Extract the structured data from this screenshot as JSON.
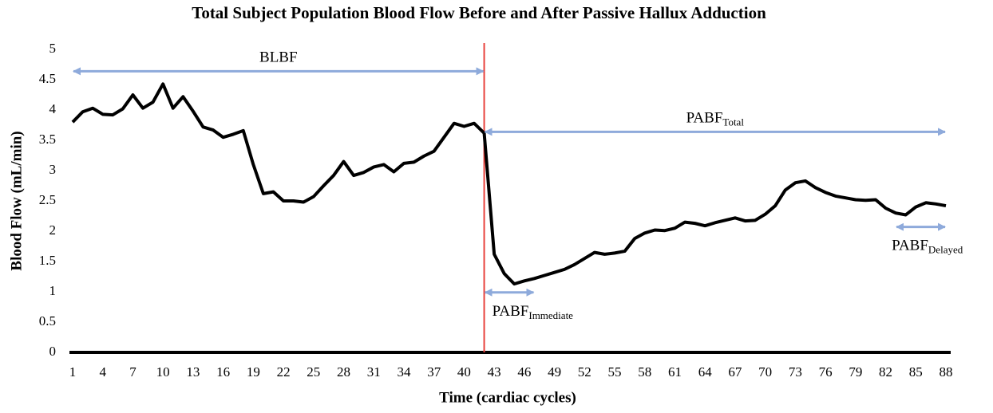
{
  "chart_data": {
    "type": "line",
    "title": "Total Subject Population Blood Flow Before and After Passive Hallux Adduction",
    "x_label": "Time (cardiac cycles)",
    "y_label": "Blood Flow (mL/min)",
    "x": [
      1,
      2,
      3,
      4,
      5,
      6,
      7,
      8,
      9,
      10,
      11,
      12,
      13,
      14,
      15,
      16,
      17,
      18,
      19,
      20,
      21,
      22,
      23,
      24,
      25,
      26,
      27,
      28,
      29,
      30,
      31,
      32,
      33,
      34,
      35,
      36,
      37,
      38,
      39,
      40,
      41,
      42,
      43,
      44,
      45,
      46,
      47,
      48,
      49,
      50,
      51,
      52,
      53,
      54,
      55,
      56,
      57,
      58,
      59,
      60,
      61,
      62,
      63,
      64,
      65,
      66,
      67,
      68,
      69,
      70,
      71,
      72,
      73,
      74,
      75,
      76,
      77,
      78,
      79,
      80,
      81,
      82,
      83,
      84,
      85,
      86,
      87,
      88
    ],
    "series": [
      {
        "name": "Blood Flow",
        "color": "#000000",
        "values": [
          3.8,
          3.97,
          4.03,
          3.93,
          3.92,
          4.02,
          4.25,
          4.03,
          4.13,
          4.43,
          4.03,
          4.22,
          3.98,
          3.72,
          3.67,
          3.55,
          3.6,
          3.66,
          3.1,
          2.62,
          2.65,
          2.5,
          2.5,
          2.48,
          2.57,
          2.75,
          2.92,
          3.15,
          2.92,
          2.97,
          3.06,
          3.1,
          2.98,
          3.12,
          3.14,
          3.24,
          3.32,
          3.55,
          3.78,
          3.73,
          3.78,
          3.62,
          1.62,
          1.3,
          1.13,
          1.18,
          1.22,
          1.27,
          1.32,
          1.37,
          1.45,
          1.55,
          1.65,
          1.62,
          1.64,
          1.67,
          1.88,
          1.97,
          2.02,
          2.01,
          2.05,
          2.15,
          2.13,
          2.09,
          2.14,
          2.18,
          2.22,
          2.17,
          2.18,
          2.28,
          2.42,
          2.68,
          2.8,
          2.83,
          2.72,
          2.64,
          2.58,
          2.55,
          2.52,
          2.51,
          2.52,
          2.38,
          2.3,
          2.27,
          2.4,
          2.47,
          2.45,
          2.42
        ]
      }
    ],
    "xlim": [
      1,
      88
    ],
    "xticks": [
      1,
      4,
      7,
      10,
      13,
      16,
      19,
      22,
      25,
      28,
      31,
      34,
      37,
      40,
      43,
      46,
      49,
      52,
      55,
      58,
      61,
      64,
      67,
      70,
      73,
      76,
      79,
      82,
      85,
      88
    ],
    "ylim": [
      0,
      5
    ],
    "yticks": [
      0,
      0.5,
      1,
      1.5,
      2,
      2.5,
      3,
      3.5,
      4,
      4.5,
      5
    ],
    "grid": false,
    "legend": false,
    "vline": {
      "x": 42,
      "color": "#e8413c"
    },
    "arrow_color": "#8eaadb",
    "annotations": [
      {
        "text": "BLBF",
        "x": [
          1,
          42
        ],
        "y": 4.64
      },
      {
        "text": "PABF",
        "sub": "Total",
        "x": [
          42,
          88
        ],
        "y": 3.64
      },
      {
        "text": "PABF",
        "sub": "Immediate",
        "x": [
          42,
          47
        ],
        "y": 0.99
      },
      {
        "text": "PABF",
        "sub": "Delayed",
        "x": [
          83,
          88
        ],
        "y": 2.07
      }
    ]
  }
}
